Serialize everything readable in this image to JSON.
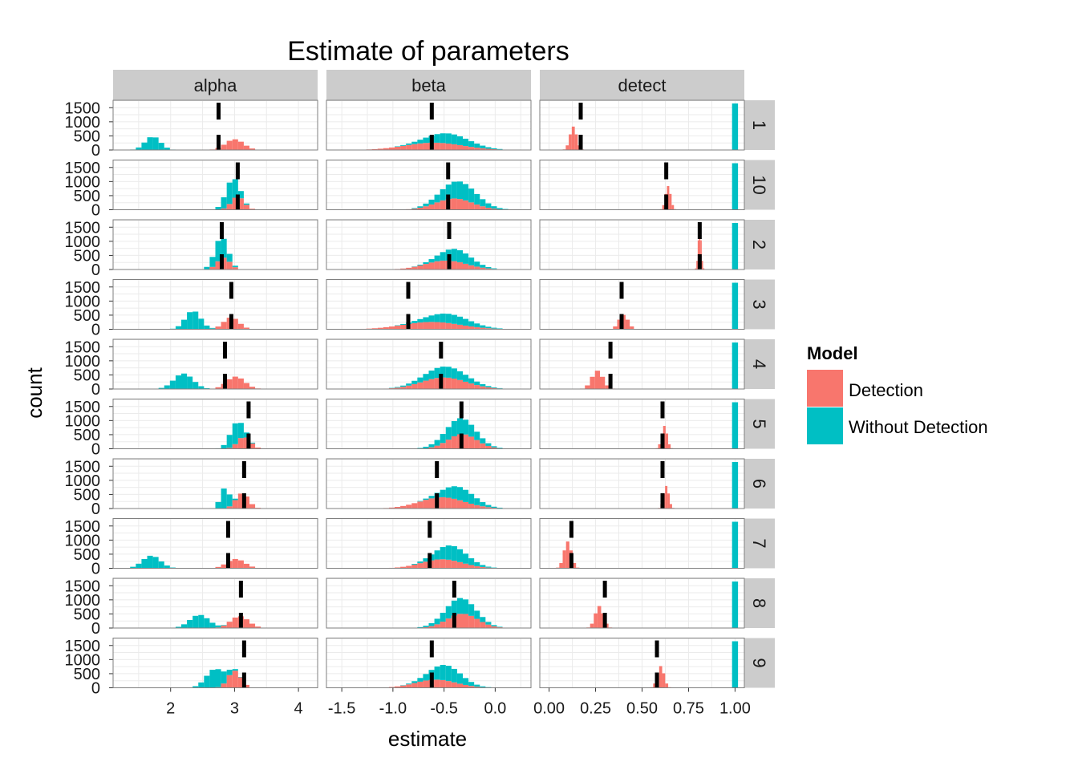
{
  "chart_data": {
    "type": "histogram",
    "title": "Estimate of parameters",
    "xlabel": "estimate",
    "ylabel": "count",
    "grid": true,
    "legend_position": "right",
    "legend": {
      "title": "Model",
      "entries": [
        {
          "name": "Detection",
          "color": "#F8766D"
        },
        {
          "name": "Without Detection",
          "color": "#00BFC4"
        }
      ]
    },
    "facet_cols": [
      {
        "name": "alpha",
        "xlim": [
          1.1,
          4.3
        ],
        "ticks": [
          2,
          3,
          4
        ],
        "tick_labels": [
          "2",
          "3",
          "4"
        ]
      },
      {
        "name": "beta",
        "xlim": [
          -1.65,
          0.35
        ],
        "ticks": [
          -1.5,
          -1.0,
          -0.5,
          0.0
        ],
        "tick_labels": [
          "-1.5",
          "-1.0",
          "-0.5",
          "0.0"
        ]
      },
      {
        "name": "detect",
        "xlim": [
          -0.05,
          1.05
        ],
        "ticks": [
          0.0,
          0.25,
          0.5,
          0.75,
          1.0
        ],
        "tick_labels": [
          "0.00",
          "0.25",
          "0.50",
          "0.75",
          "1.00"
        ]
      }
    ],
    "facet_rows": [
      "1",
      "10",
      "2",
      "3",
      "4",
      "5",
      "6",
      "7",
      "8",
      "9"
    ],
    "ylim": [
      0,
      1650
    ],
    "yticks": [
      0,
      500,
      1000,
      1500
    ],
    "ytick_labels": [
      "0",
      "500",
      "1000",
      "1500"
    ],
    "series": [
      {
        "name": "Detection",
        "peaks": {
          "alpha": [
            3.0,
            3.05,
            2.83,
            2.95,
            3.02,
            3.15,
            3.12,
            3.02,
            3.08,
            3.0
          ],
          "beta": [
            -0.6,
            -0.4,
            -0.48,
            -0.62,
            -0.5,
            -0.32,
            -0.52,
            -0.52,
            -0.32,
            -0.58
          ],
          "detect": [
            0.13,
            0.64,
            0.81,
            0.4,
            0.26,
            0.62,
            0.63,
            0.1,
            0.27,
            0.6
          ]
        },
        "heights": {
          "alpha": [
            380,
            460,
            420,
            420,
            440,
            430,
            540,
            330,
            420,
            610
          ],
          "beta": [
            260,
            400,
            320,
            260,
            410,
            520,
            400,
            320,
            510,
            290
          ],
          "detect": [
            830,
            840,
            1550,
            510,
            650,
            810,
            800,
            950,
            780,
            770
          ]
        },
        "sd": {
          "alpha": [
            0.14,
            0.1,
            0.1,
            0.12,
            0.14,
            0.1,
            0.1,
            0.14,
            0.14,
            0.1
          ],
          "beta": [
            0.28,
            0.18,
            0.2,
            0.28,
            0.22,
            0.14,
            0.22,
            0.2,
            0.15,
            0.2
          ],
          "detect": [
            0.018,
            0.014,
            0.008,
            0.025,
            0.03,
            0.015,
            0.014,
            0.02,
            0.022,
            0.018
          ]
        }
      },
      {
        "name": "Without Detection",
        "peaks": {
          "alpha": [
            1.72,
            2.95,
            2.78,
            2.35,
            2.2,
            3.02,
            2.85,
            1.7,
            2.45,
            2.7
          ],
          "beta": [
            -0.45,
            -0.35,
            -0.38,
            -0.45,
            -0.48,
            -0.35,
            -0.35,
            -0.42,
            -0.35,
            -0.48
          ],
          "detect": [
            1.0,
            1.0,
            1.0,
            1.0,
            1.0,
            1.0,
            1.0,
            1.0,
            1.0,
            1.0
          ]
        },
        "heights": {
          "alpha": [
            480,
            790,
            770,
            660,
            550,
            740,
            720,
            450,
            470,
            670
          ],
          "beta": [
            360,
            620,
            440,
            330,
            390,
            570,
            470,
            520,
            560,
            550
          ],
          "detect": [
            1650,
            1650,
            1650,
            1650,
            1650,
            1650,
            1650,
            1650,
            1650,
            1650
          ]
        },
        "sd": {
          "alpha": [
            0.12,
            0.1,
            0.1,
            0.12,
            0.15,
            0.1,
            0.07,
            0.14,
            0.15,
            0.14
          ],
          "beta": [
            0.2,
            0.17,
            0.15,
            0.2,
            0.2,
            0.15,
            0.15,
            0.15,
            0.15,
            0.15
          ],
          "detect": [
            0,
            0,
            0,
            0,
            0,
            0,
            0,
            0,
            0,
            0
          ]
        }
      }
    ],
    "true_values": {
      "alpha": [
        2.75,
        3.05,
        2.8,
        2.95,
        2.85,
        3.22,
        3.15,
        2.9,
        3.1,
        3.15
      ],
      "beta": [
        -0.62,
        -0.46,
        -0.45,
        -0.85,
        -0.53,
        -0.33,
        -0.57,
        -0.64,
        -0.4,
        -0.62
      ],
      "detect": [
        0.17,
        0.63,
        0.81,
        0.39,
        0.33,
        0.61,
        0.61,
        0.12,
        0.3,
        0.58
      ]
    }
  }
}
